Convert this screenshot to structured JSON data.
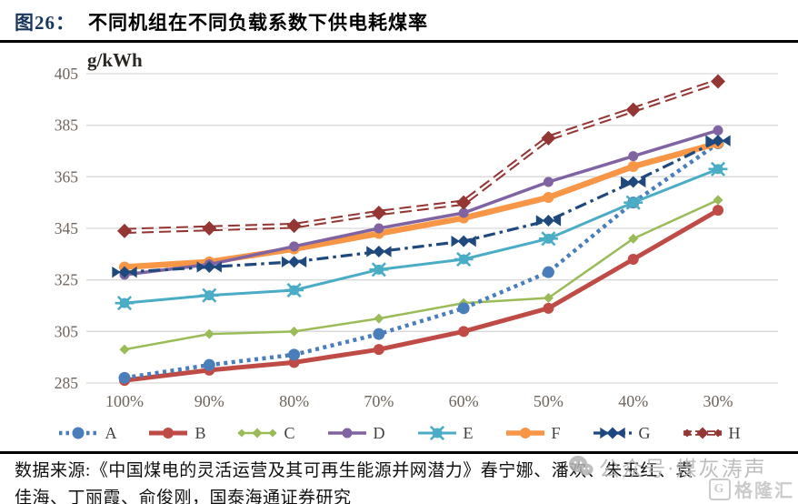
{
  "title": {
    "prefix": "图26：",
    "text": "不同机组在不同负载系数下供电耗煤率"
  },
  "chart_data": {
    "type": "line",
    "title": "图26：不同机组在不同负载系数下供电耗煤率",
    "ylabel": "g/kWh",
    "xlabel": "",
    "categories": [
      "100%",
      "90%",
      "80%",
      "70%",
      "60%",
      "50%",
      "40%",
      "30%"
    ],
    "yticks": [
      285,
      305,
      325,
      345,
      365,
      385,
      405
    ],
    "ylim": [
      285,
      405
    ],
    "grid": true,
    "legend_position": "bottom",
    "series": [
      {
        "name": "A",
        "color": "#4a7ebb",
        "line": "dotted",
        "marker": "circle",
        "width": 4.5,
        "values": [
          287,
          292,
          296,
          304,
          314,
          328,
          355,
          378
        ]
      },
      {
        "name": "B",
        "color": "#bf4b47",
        "line": "solid",
        "marker": "circle",
        "width": 5,
        "values": [
          286,
          290,
          293,
          298,
          305,
          314,
          333,
          352
        ]
      },
      {
        "name": "C",
        "color": "#9bbb59",
        "line": "solid",
        "marker": "diamond",
        "width": 2.5,
        "values": [
          298,
          304,
          305,
          310,
          316,
          318,
          341,
          356
        ]
      },
      {
        "name": "D",
        "color": "#8064a2",
        "line": "solid",
        "marker": "circle",
        "width": 3.5,
        "values": [
          327,
          331,
          338,
          345,
          351,
          363,
          373,
          383
        ]
      },
      {
        "name": "E",
        "color": "#4bacc6",
        "line": "solid",
        "marker": "xstar",
        "width": 3,
        "values": [
          316,
          319,
          321,
          329,
          333,
          341,
          355,
          368
        ]
      },
      {
        "name": "F",
        "color": "#f79646",
        "line": "solid",
        "marker": "circle",
        "width": 6.5,
        "values": [
          330,
          332,
          337,
          343,
          349,
          357,
          369,
          378
        ]
      },
      {
        "name": "G",
        "color": "#1f497d",
        "line": "dashdot",
        "marker": "bowtie",
        "width": 3.2,
        "values": [
          328,
          330,
          332,
          336,
          340,
          348,
          363,
          379
        ]
      },
      {
        "name": "H",
        "color": "#943634",
        "line": "double-dash",
        "marker": "diamond",
        "width": 6.5,
        "values": [
          344,
          345,
          346,
          351,
          355,
          380,
          391,
          402
        ]
      }
    ]
  },
  "footer": {
    "line1": "数据来源:《中国煤电的灵活运营及其可再生能源并网潜力》春宁娜、潘欢、朱玉红、袁",
    "line2": "佳海、丁丽霞、俞俊刚，国泰海通证券研究"
  },
  "watermarks": {
    "wechat_label": "公众号·煤灰涛声",
    "brand_label": "格隆汇",
    "brand_letter": "G"
  }
}
